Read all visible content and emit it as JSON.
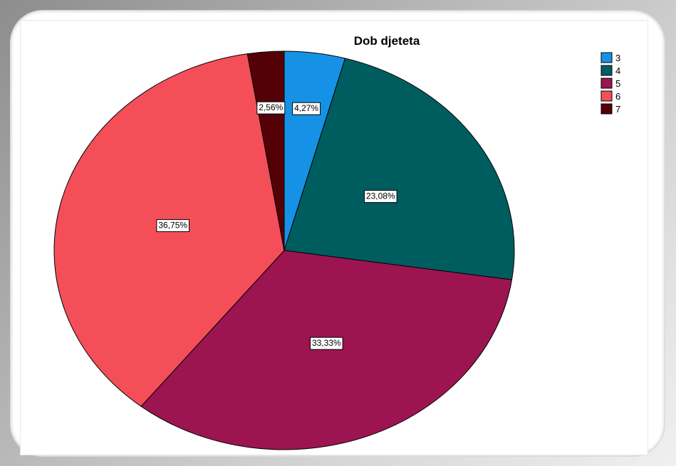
{
  "chart_data": {
    "type": "pie",
    "title": "Dob djeteta",
    "legend_position": "top-right",
    "categories": [
      "3",
      "4",
      "5",
      "6",
      "7"
    ],
    "values": [
      4.27,
      23.08,
      33.33,
      36.75,
      2.56
    ],
    "labels": [
      "4,27%",
      "23,08%",
      "33,33%",
      "36,75%",
      "2,56%"
    ],
    "colors": [
      "#1592e6",
      "#005d5f",
      "#9c1550",
      "#f44f59",
      "#540007"
    ]
  }
}
